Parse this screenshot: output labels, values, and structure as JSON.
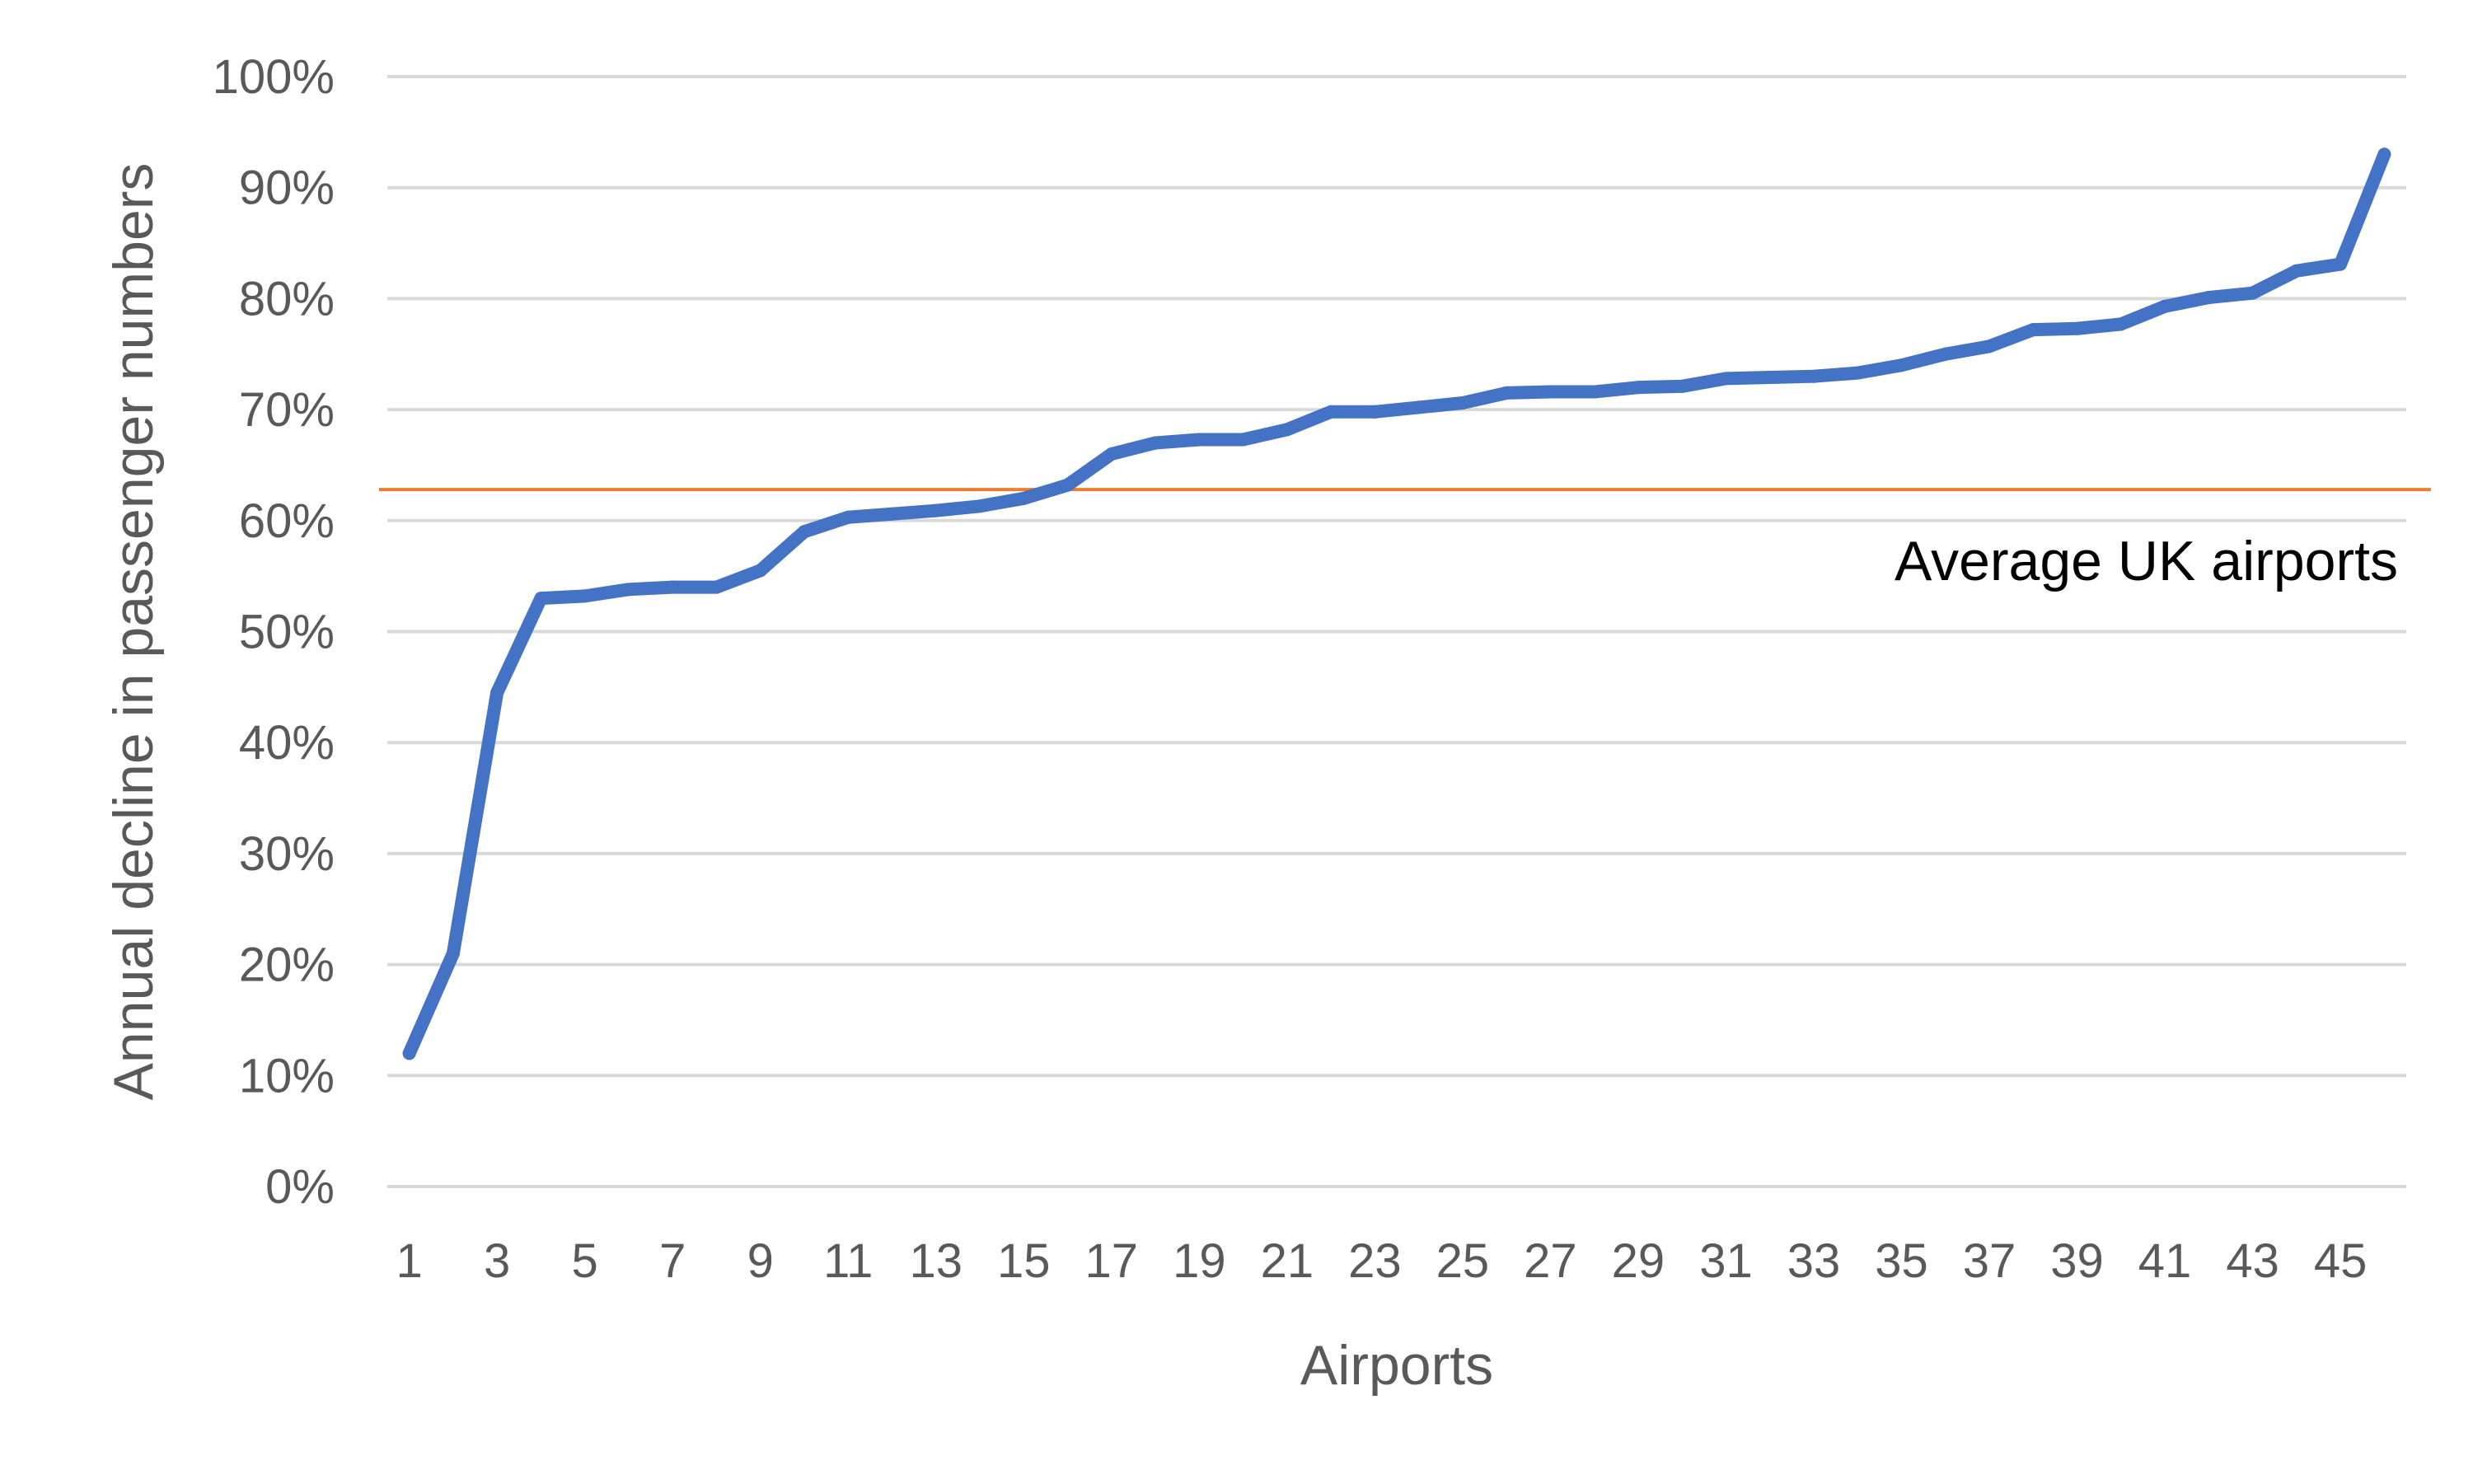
{
  "chart_data": {
    "type": "line",
    "title": "",
    "xlabel": "Airports",
    "ylabel": "Annual decline in passenger numbers",
    "x": [
      1,
      2,
      3,
      4,
      5,
      6,
      7,
      8,
      9,
      10,
      11,
      12,
      13,
      14,
      15,
      16,
      17,
      18,
      19,
      20,
      21,
      22,
      23,
      24,
      25,
      26,
      27,
      28,
      29,
      30,
      31,
      32,
      33,
      34,
      35,
      36,
      37,
      38,
      39,
      40,
      41,
      42,
      43,
      44,
      45,
      46
    ],
    "x_tick_labels": [
      "1",
      "3",
      "5",
      "7",
      "9",
      "11",
      "13",
      "15",
      "17",
      "19",
      "21",
      "23",
      "25",
      "27",
      "29",
      "31",
      "33",
      "35",
      "37",
      "39",
      "41",
      "43",
      "45"
    ],
    "x_tick_values": [
      1,
      3,
      5,
      7,
      9,
      11,
      13,
      15,
      17,
      19,
      21,
      23,
      25,
      27,
      29,
      31,
      33,
      35,
      37,
      39,
      41,
      43,
      45
    ],
    "y_tick_labels": [
      "0%",
      "10%",
      "20%",
      "30%",
      "40%",
      "50%",
      "60%",
      "70%",
      "80%",
      "90%",
      "100%"
    ],
    "y_tick_values": [
      0,
      10,
      20,
      30,
      40,
      50,
      60,
      70,
      80,
      90,
      100
    ],
    "ylim": [
      0,
      100
    ],
    "xlim": [
      0.5,
      46.5
    ],
    "grid": true,
    "series": [
      {
        "color": "#4472C4",
        "values": [
          12,
          21,
          44.5,
          53,
          53.2,
          53.8,
          54,
          54,
          55.5,
          59,
          60.3,
          60.6,
          60.9,
          61.3,
          62,
          63.2,
          66,
          67,
          67.3,
          67.3,
          68.2,
          69.8,
          69.8,
          70.2,
          70.6,
          71.5,
          71.6,
          71.6,
          72,
          72.1,
          72.8,
          72.9,
          73,
          73.3,
          74,
          75,
          75.7,
          77.2,
          77.3,
          77.7,
          79.3,
          80.1,
          80.5,
          82.5,
          83.1,
          93
        ]
      }
    ],
    "reference_line": {
      "value": 62.8,
      "label": "Average UK airports",
      "color": "#ED7D31"
    },
    "gridline_color": "#D9D9D9"
  }
}
